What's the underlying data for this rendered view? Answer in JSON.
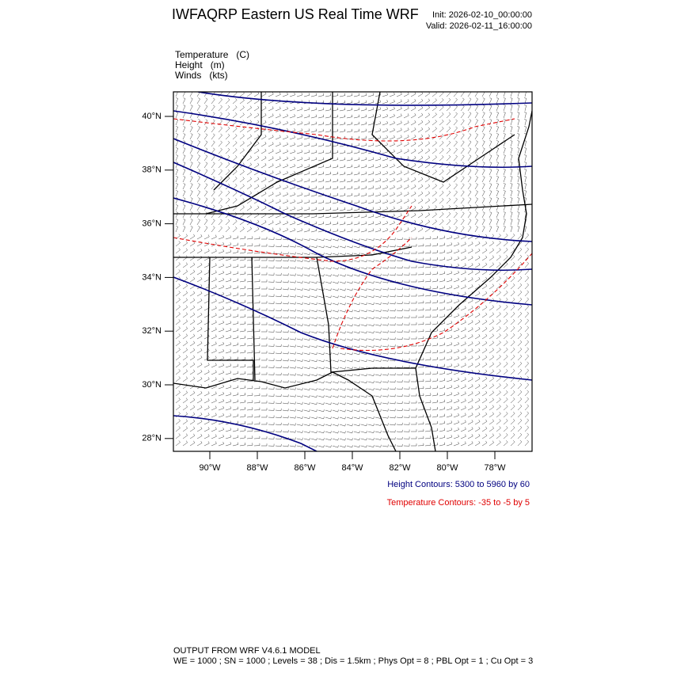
{
  "header": {
    "title": "IWFAQRP Eastern US Real Time WRF",
    "init": "Init: 2026-02-10_00:00:00",
    "valid": "Valid: 2026-02-11_16:00:00"
  },
  "fields": [
    "Temperature   (C)",
    "Height   (m)",
    "Winds   (kts)"
  ],
  "map": {
    "lat_labels": [
      "40°N",
      "38°N",
      "36°N",
      "34°N",
      "32°N",
      "30°N",
      "28°N"
    ],
    "lon_labels": [
      "90°W",
      "88°W",
      "86°W",
      "84°W",
      "82°W",
      "80°W",
      "78°W"
    ]
  },
  "contour_notes": [
    "Height Contours: 5300 to 5960 by 60",
    "Temperature Contours: -35 to -5 by 5"
  ],
  "footer": [
    "OUTPUT FROM WRF V4.6.1 MODEL",
    "WE = 1000 ; SN = 1000 ; Levels = 38 ; Dis = 1.5km ; Phys Opt = 8 ; PBL Opt = 1 ; Cu Opt = 3"
  ]
}
